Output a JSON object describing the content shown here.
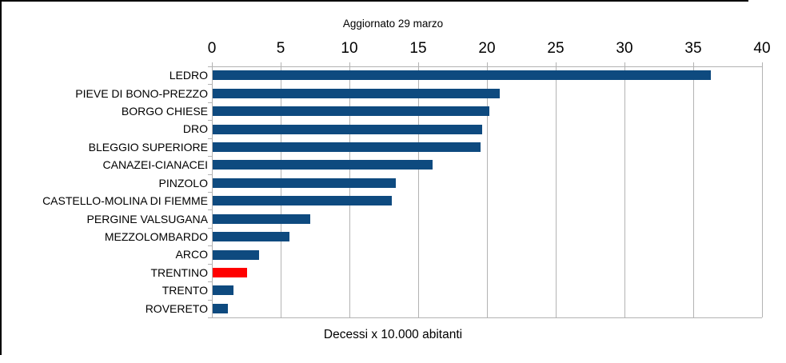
{
  "chart_data": {
    "type": "bar",
    "orientation": "horizontal",
    "title": "Aggiornato 29 marzo",
    "xlabel": "Decessi x 10.000 abitanti",
    "xlim": [
      0,
      40
    ],
    "x_ticks": [
      0,
      5,
      10,
      15,
      20,
      25,
      30,
      35,
      40
    ],
    "grid": true,
    "categories": [
      "LEDRO",
      "PIEVE DI BONO-PREZZO",
      "BORGO CHIESE",
      "DRO",
      "BLEGGIO SUPERIORE",
      "CANAZEI-CIANACEI",
      "PINZOLO",
      "CASTELLO-MOLINA DI FIEMME",
      "PERGINE VALSUGANA",
      "MEZZOLOMBARDO",
      "ARCO",
      "TRENTINO",
      "TRENTO",
      "ROVERETO"
    ],
    "values": [
      36.2,
      20.9,
      20.1,
      19.6,
      19.5,
      16.0,
      13.3,
      13.0,
      7.1,
      5.6,
      3.4,
      2.5,
      1.5,
      1.1
    ],
    "bar_color_default": "#0e4a7f",
    "highlight_category": "TRENTINO",
    "highlight_color": "#ff0000",
    "gridline_color": "#b3b3b3",
    "text_color": "#000000"
  }
}
